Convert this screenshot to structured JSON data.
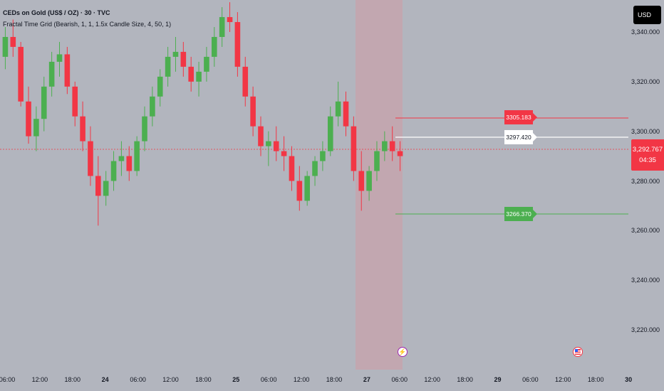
{
  "legend": {
    "title": "CEDs on Gold (US$ / OZ) · 30 · TVC",
    "indicator": "Fractal Time Grid (Bearish, 1, 1, 1.5x Candle Size, 4, 50, 1)"
  },
  "currency_label": "USD",
  "price_axis": {
    "ticks": [
      "3,340.000",
      "3,320.000",
      "3,300.000",
      "3,280.000",
      "3,260.000",
      "3,240.000",
      "3,220.000"
    ],
    "tick_values": [
      3340,
      3320,
      3300,
      3280,
      3260,
      3240,
      3220
    ]
  },
  "current_price": {
    "value": "3,292.767",
    "countdown": "04:35"
  },
  "levels": {
    "upper": {
      "label": "3305.183",
      "value": 3305.183
    },
    "mid": {
      "label": "3297.420",
      "value": 3297.42
    },
    "lower": {
      "label": "3266.370",
      "value": 3266.37
    }
  },
  "time_axis": {
    "labels": [
      {
        "text": "06:00",
        "bold": false
      },
      {
        "text": "12:00",
        "bold": false
      },
      {
        "text": "18:00",
        "bold": false
      },
      {
        "text": "24",
        "bold": true
      },
      {
        "text": "06:00",
        "bold": false
      },
      {
        "text": "12:00",
        "bold": false
      },
      {
        "text": "18:00",
        "bold": false
      },
      {
        "text": "25",
        "bold": true
      },
      {
        "text": "06:00",
        "bold": false
      },
      {
        "text": "12:00",
        "bold": false
      },
      {
        "text": "18:00",
        "bold": false
      },
      {
        "text": "27",
        "bold": true
      },
      {
        "text": "06:00",
        "bold": false
      },
      {
        "text": "12:00",
        "bold": false
      },
      {
        "text": "18:00",
        "bold": false
      },
      {
        "text": "29",
        "bold": true
      },
      {
        "text": "06:00",
        "bold": false
      },
      {
        "text": "12:00",
        "bold": false
      },
      {
        "text": "18:00",
        "bold": false
      },
      {
        "text": "30",
        "bold": true
      }
    ]
  },
  "colors": {
    "background": "#b2b5be",
    "up_candle": "#4caf50",
    "down_candle": "#f23645",
    "highlight_zone": "#c7a3ab",
    "event_flash": "#9c27b0"
  },
  "icons": [
    "flash-icon",
    "us-flag-icon"
  ],
  "chart_data": {
    "type": "candlestick",
    "symbol": "CEDs on Gold (US$ / OZ)",
    "interval": "30",
    "ylim": [
      3210,
      3352
    ],
    "ohlc_approx": [
      [
        3330,
        3342,
        3325,
        3338
      ],
      [
        3338,
        3345,
        3330,
        3334
      ],
      [
        3334,
        3336,
        3310,
        3312
      ],
      [
        3312,
        3318,
        3295,
        3298
      ],
      [
        3298,
        3310,
        3292,
        3305
      ],
      [
        3305,
        3322,
        3300,
        3318
      ],
      [
        3318,
        3332,
        3314,
        3328
      ],
      [
        3328,
        3336,
        3322,
        3331
      ],
      [
        3331,
        3334,
        3315,
        3318
      ],
      [
        3318,
        3320,
        3302,
        3306
      ],
      [
        3306,
        3312,
        3292,
        3296
      ],
      [
        3296,
        3302,
        3278,
        3282
      ],
      [
        3282,
        3290,
        3262,
        3274
      ],
      [
        3274,
        3284,
        3270,
        3280
      ],
      [
        3280,
        3292,
        3276,
        3288
      ],
      [
        3288,
        3296,
        3282,
        3290
      ],
      [
        3290,
        3294,
        3280,
        3284
      ],
      [
        3284,
        3298,
        3282,
        3296
      ],
      [
        3296,
        3310,
        3292,
        3306
      ],
      [
        3306,
        3318,
        3302,
        3314
      ],
      [
        3314,
        3325,
        3310,
        3322
      ],
      [
        3322,
        3334,
        3318,
        3330
      ],
      [
        3330,
        3338,
        3324,
        3332
      ],
      [
        3332,
        3336,
        3322,
        3326
      ],
      [
        3326,
        3330,
        3316,
        3320
      ],
      [
        3320,
        3328,
        3314,
        3324
      ],
      [
        3324,
        3334,
        3320,
        3330
      ],
      [
        3330,
        3342,
        3326,
        3338
      ],
      [
        3338,
        3350,
        3334,
        3346
      ],
      [
        3346,
        3352,
        3340,
        3344
      ],
      [
        3344,
        3348,
        3322,
        3326
      ],
      [
        3326,
        3330,
        3310,
        3314
      ],
      [
        3314,
        3318,
        3298,
        3302
      ],
      [
        3302,
        3306,
        3290,
        3294
      ],
      [
        3294,
        3300,
        3286,
        3296
      ],
      [
        3296,
        3302,
        3288,
        3292
      ],
      [
        3292,
        3298,
        3284,
        3290
      ],
      [
        3290,
        3294,
        3276,
        3280
      ],
      [
        3280,
        3286,
        3268,
        3272
      ],
      [
        3272,
        3284,
        3270,
        3282
      ],
      [
        3282,
        3290,
        3278,
        3288
      ],
      [
        3288,
        3296,
        3284,
        3292
      ],
      [
        3292,
        3310,
        3290,
        3306
      ],
      [
        3306,
        3320,
        3302,
        3312
      ],
      [
        3312,
        3316,
        3298,
        3302
      ],
      [
        3302,
        3306,
        3280,
        3284
      ],
      [
        3284,
        3292,
        3268,
        3276
      ],
      [
        3276,
        3286,
        3272,
        3284
      ],
      [
        3284,
        3296,
        3280,
        3292
      ],
      [
        3292,
        3300,
        3288,
        3296
      ],
      [
        3296,
        3302,
        3288,
        3292
      ],
      [
        3292,
        3296,
        3284,
        3290
      ]
    ]
  }
}
